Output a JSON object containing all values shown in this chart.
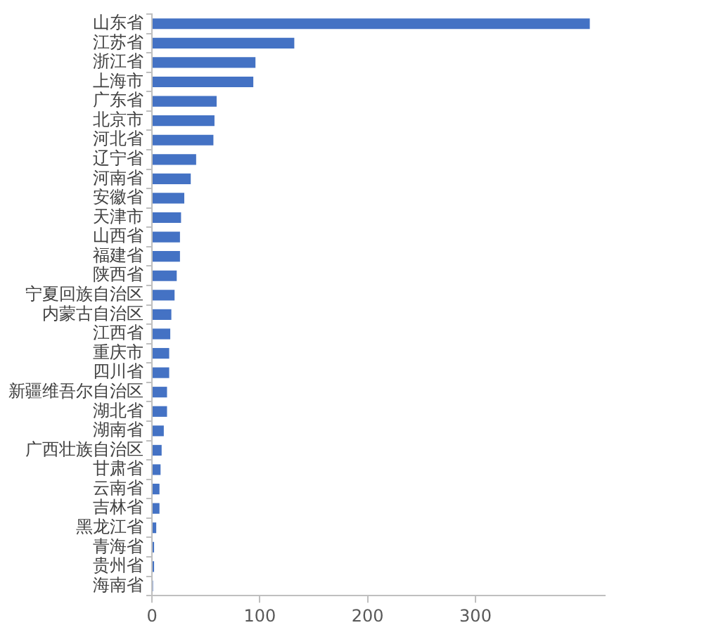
{
  "chart_data": {
    "type": "bar",
    "orientation": "horizontal",
    "categories": [
      "山东省",
      "江苏省",
      "浙江省",
      "上海市",
      "广东省",
      "北京市",
      "河北省",
      "辽宁省",
      "河南省",
      "安徽省",
      "天津市",
      "山西省",
      "福建省",
      "陕西省",
      "宁夏回族自治区",
      "内蒙古自治区",
      "江西省",
      "重庆市",
      "四川省",
      "新疆维吾尔自治区",
      "湖北省",
      "湖南省",
      "广西壮族自治区",
      "甘肃省",
      "云南省",
      "吉林省",
      "黑龙江省",
      "青海省",
      "贵州省",
      "海南省"
    ],
    "values": [
      406,
      132,
      96,
      94,
      60,
      58,
      57,
      41,
      36,
      30,
      27,
      26,
      26,
      23,
      21,
      18,
      17,
      16,
      16,
      14,
      14,
      11,
      9,
      8,
      7,
      7,
      4,
      2,
      2,
      1
    ],
    "color": "#4472c4",
    "xlim": [
      0,
      420
    ],
    "xticks": [
      0,
      100,
      200,
      300
    ],
    "grid": false,
    "legend": false
  }
}
